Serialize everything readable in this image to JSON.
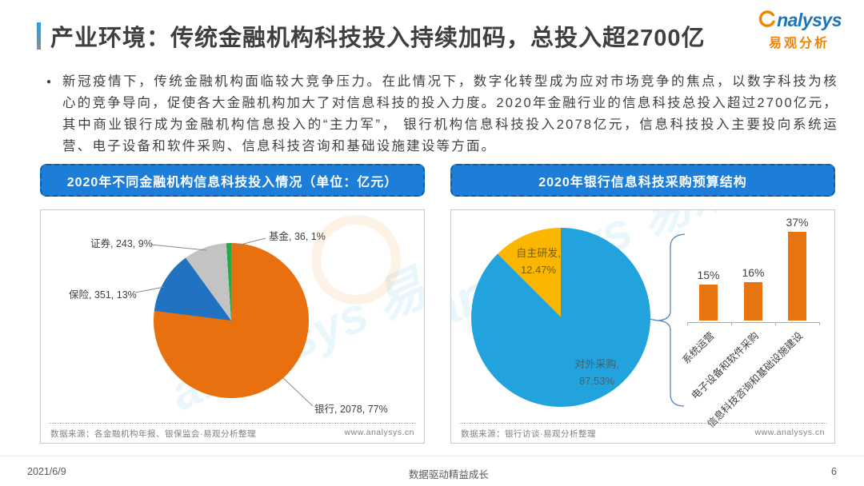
{
  "header": {
    "title": "产业环境：传统金融机构科技投入持续加码，总投入超2700亿",
    "logo": {
      "brand": "analysys",
      "brand_suffix": "nalysys",
      "brand_cn": "易观分析"
    }
  },
  "intro": {
    "bullet": "●",
    "text": "新冠疫情下，传统金融机构面临较大竞争压力。在此情况下，数字化转型成为应对市场竞争的焦点，以数字科技为核心的竞争导向，促使各大金融机构加大了对信息科技的投入力度。2020年金融行业的信息科技总投入超过2700亿元，其中商业银行成为金融机构信息投入的“主力军”， 银行机构信息科技投入2078亿元，信息科技投入主要投向系统运营、电子设备和软件采购、信息科技咨询和基础设施建设等方面。"
  },
  "watermark": {
    "text": "analysys 易观"
  },
  "panels": {
    "left": {
      "header": "2020年不同金融机构信息科技投入情况（单位：亿元）",
      "source": "数据来源：各金融机构年报、银保监会·易观分析整理",
      "site": "www.analysys.cn"
    },
    "right": {
      "header": "2020年银行信息科技采购预算结构",
      "source": "数据来源：银行访谈·易观分析整理",
      "site": "www.analysys.cn"
    }
  },
  "footer": {
    "date": "2021/6/9",
    "slogan": "数据驱动精益成长",
    "page": "6"
  },
  "chart_data": [
    {
      "id": "institutions-pie",
      "type": "pie",
      "title": "2020年不同金融机构信息科技投入情况",
      "unit": "亿元",
      "start": "top",
      "direction": "clockwise",
      "categories": [
        "银行",
        "保险",
        "证券",
        "基金"
      ],
      "values": [
        2078,
        351,
        243,
        36
      ],
      "percents": [
        77,
        13,
        9,
        1
      ],
      "colors": [
        "#E8700E",
        "#2173C2",
        "#C3C3C3",
        "#22A94C"
      ],
      "labels": [
        "银行, 2078, 77%",
        "保险, 351, 13%",
        "证券, 243, 9%",
        "基金, 36, 1%"
      ]
    },
    {
      "id": "procurement-pie",
      "type": "pie",
      "title": "2020年银行信息科技采购预算结构",
      "start": "top",
      "direction": "clockwise",
      "categories": [
        "对外采购",
        "自主研发"
      ],
      "percents": [
        87.53,
        12.47
      ],
      "colors": [
        "#23A3DE",
        "#FBB700"
      ],
      "label_lines": [
        [
          "对外采购,",
          "87.53%"
        ],
        [
          "自主研发,",
          "12.47%"
        ]
      ]
    },
    {
      "id": "procurement-bars",
      "type": "bar",
      "categories": [
        "系统运营",
        "电子设备和软件采购",
        "信息科技咨询和基础设施建设"
      ],
      "values": [
        15,
        16,
        37
      ],
      "labels": [
        "15%",
        "16%",
        "37%"
      ],
      "unit": "%",
      "color": "#E8740F",
      "ylim": [
        0,
        40
      ],
      "grid": false
    }
  ]
}
